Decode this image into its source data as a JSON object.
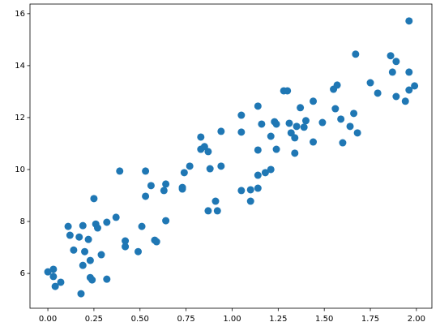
{
  "chart_data": {
    "type": "scatter",
    "color": "#1f77b4",
    "x": [
      0.0,
      0.03,
      0.03,
      0.04,
      0.07,
      0.11,
      0.12,
      0.14,
      0.17,
      0.19,
      0.19,
      0.18,
      0.2,
      0.22,
      0.23,
      0.23,
      0.24,
      0.25,
      0.26,
      0.27,
      0.29,
      0.32,
      0.32,
      0.37,
      0.39,
      0.42,
      0.42,
      0.49,
      0.51,
      0.53,
      0.53,
      0.56,
      0.58,
      0.59,
      0.63,
      0.64,
      0.64,
      0.73,
      0.73,
      0.74,
      0.77,
      0.83,
      0.83,
      0.85,
      0.87,
      0.88,
      0.87,
      0.91,
      0.92,
      0.94,
      0.94,
      1.05,
      1.05,
      1.05,
      1.1,
      1.1,
      1.14,
      1.14,
      1.14,
      1.14,
      1.16,
      1.18,
      1.21,
      1.21,
      1.23,
      1.24,
      1.24,
      1.28,
      1.3,
      1.31,
      1.32,
      1.34,
      1.34,
      1.35,
      1.37,
      1.39,
      1.4,
      1.44,
      1.44,
      1.49,
      1.55,
      1.57,
      1.56,
      1.59,
      1.6,
      1.64,
      1.66,
      1.67,
      1.68,
      1.75,
      1.79,
      1.86,
      1.87,
      1.89,
      1.89,
      1.94,
      1.96,
      1.96,
      1.96,
      1.99
    ],
    "y": [
      6.06,
      6.16,
      5.88,
      5.5,
      5.66,
      7.81,
      7.47,
      6.9,
      7.4,
      7.84,
      6.31,
      5.22,
      6.84,
      7.31,
      6.5,
      5.84,
      5.75,
      8.88,
      7.9,
      7.75,
      6.72,
      5.78,
      7.97,
      8.16,
      9.94,
      7.25,
      7.03,
      6.84,
      7.81,
      9.94,
      8.97,
      9.38,
      7.28,
      7.22,
      9.19,
      9.44,
      8.03,
      9.25,
      9.31,
      9.88,
      10.13,
      11.25,
      10.78,
      10.88,
      10.69,
      10.03,
      8.41,
      8.78,
      8.41,
      10.13,
      11.47,
      12.09,
      11.44,
      9.19,
      8.78,
      9.22,
      12.44,
      10.75,
      9.78,
      9.28,
      11.75,
      9.88,
      10.0,
      11.28,
      11.84,
      11.75,
      10.78,
      13.03,
      13.03,
      11.78,
      11.41,
      11.22,
      10.63,
      11.66,
      12.38,
      11.63,
      11.88,
      12.63,
      11.06,
      11.81,
      13.09,
      13.25,
      12.34,
      11.94,
      11.03,
      11.66,
      12.16,
      14.44,
      11.41,
      13.34,
      12.94,
      14.38,
      13.75,
      14.16,
      12.81,
      12.63,
      13.75,
      15.72,
      13.06,
      13.22
    ],
    "xlim": [
      -0.097,
      2.084
    ],
    "ylim": [
      4.66,
      16.37
    ],
    "xticks": [
      {
        "value": 0,
        "label": "0.00"
      },
      {
        "value": 0.25,
        "label": "0.25"
      },
      {
        "value": 0.5,
        "label": "0.50"
      },
      {
        "value": 0.75,
        "label": "0.75"
      },
      {
        "value": 1,
        "label": "1.00"
      },
      {
        "value": 1.25,
        "label": "1.25"
      },
      {
        "value": 1.5,
        "label": "1.50"
      },
      {
        "value": 1.75,
        "label": "1.75"
      },
      {
        "value": 2,
        "label": "2.00"
      }
    ],
    "yticks": [
      6,
      8,
      10,
      12,
      14,
      16
    ]
  }
}
